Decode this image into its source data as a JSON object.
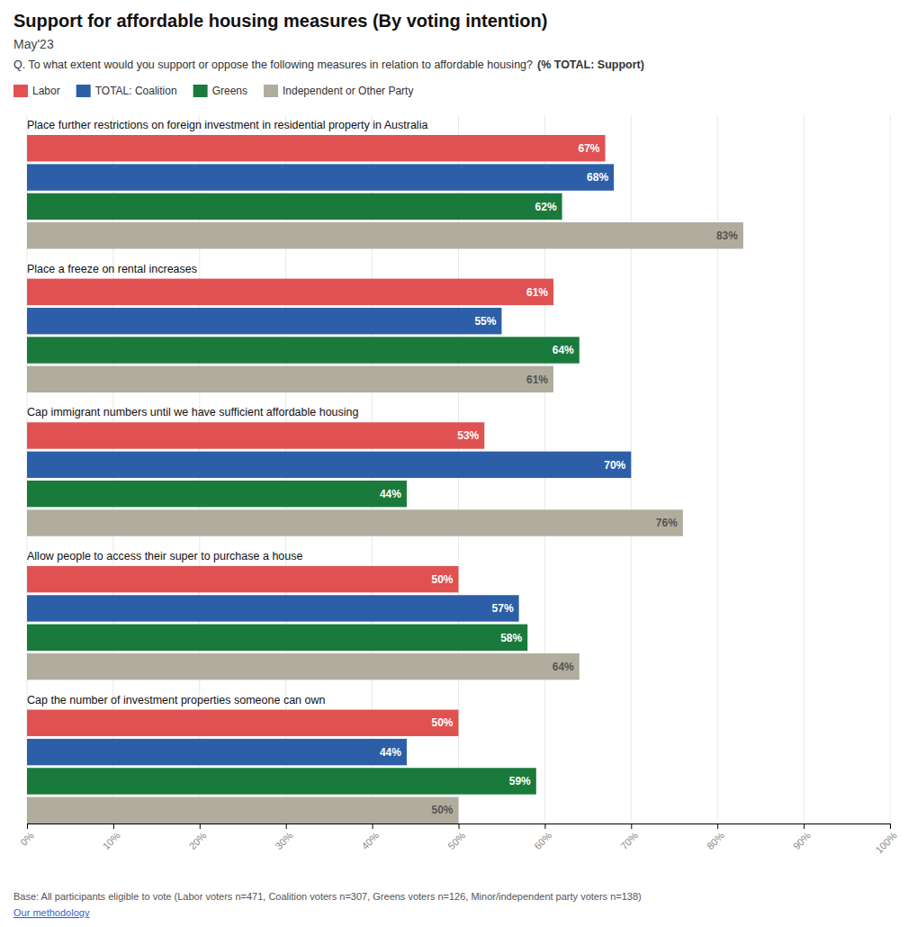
{
  "chart_data": {
    "type": "bar",
    "orientation": "horizontal",
    "title": "Support for affordable housing measures (By voting intention)",
    "subtitle": "May'23",
    "annotations": [
      "Q. To what extent would you support or oppose the following measures in relation to affordable housing?",
      "(% TOTAL: Support)",
      "Base: All participants eligible to vote (Labor voters n=471, Coalition voters n=307, Greens voters n=126, Minor/independent party voters n=138)",
      "Our methodology"
    ],
    "categories": [
      "Place further restrictions on foreign investment in residential property in Australia",
      "Place a freeze on rental increases",
      "Cap immigrant numbers until we have sufficient affordable housing",
      "Allow people to access their super to purchase a house",
      "Cap the number of investment properties someone can own"
    ],
    "series": [
      {
        "name": "Labor",
        "color": "#e05252",
        "values": [
          67,
          61,
          53,
          50,
          50
        ],
        "value_labels": [
          "67%",
          "61%",
          "53%",
          "50%",
          "50%"
        ]
      },
      {
        "name": "TOTAL: Coalition",
        "color": "#2d5fa8",
        "values": [
          68,
          55,
          70,
          57,
          44
        ],
        "value_labels": [
          "68%",
          "55%",
          "70%",
          "57%",
          "44%"
        ]
      },
      {
        "name": "Greens",
        "color": "#1a7a3c",
        "values": [
          62,
          64,
          44,
          58,
          59
        ],
        "value_labels": [
          "62%",
          "64%",
          "44%",
          "58%",
          "59%"
        ]
      },
      {
        "name": "Independent or Other Party",
        "color": "#b0ad9e",
        "values": [
          83,
          61,
          76,
          64,
          50
        ],
        "value_labels": [
          "83%",
          "61%",
          "76%",
          "64%",
          "50%"
        ]
      }
    ],
    "xlim": [
      0,
      100
    ],
    "xticks": [
      {
        "value": 0,
        "label": "0%"
      },
      {
        "value": 10,
        "label": "10%"
      },
      {
        "value": 20,
        "label": "20%"
      },
      {
        "value": 30,
        "label": "30%"
      },
      {
        "value": 40,
        "label": "40%"
      },
      {
        "value": 50,
        "label": "50%"
      },
      {
        "value": 60,
        "label": "60%"
      },
      {
        "value": 70,
        "label": "70%"
      },
      {
        "value": 80,
        "label": "80%"
      },
      {
        "value": 90,
        "label": "90%"
      },
      {
        "value": 100,
        "label": "100%"
      }
    ],
    "grid": true,
    "legend": "top-left",
    "data_labels": true
  }
}
